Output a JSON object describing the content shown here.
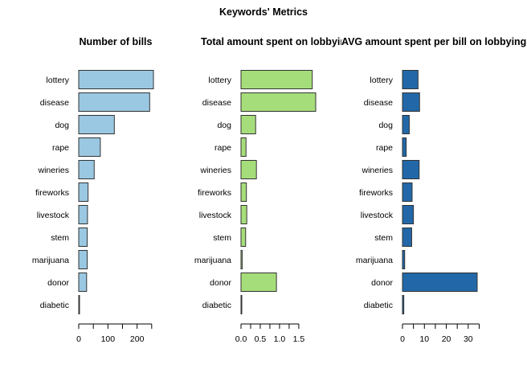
{
  "suptitle": "Keywords' Metrics",
  "chart_data": [
    {
      "type": "bar",
      "orientation": "horizontal",
      "title": "Number of bills",
      "categories": [
        "lottery",
        "disease",
        "dog",
        "rape",
        "wineries",
        "fireworks",
        "livestock",
        "stem",
        "marijuana",
        "donor",
        "diabetic"
      ],
      "values": [
        256,
        243,
        122,
        74,
        53,
        32,
        30,
        29,
        29,
        27,
        2
      ],
      "xlim": [
        0,
        256
      ],
      "xticks": [
        0,
        50,
        100,
        150,
        200,
        250
      ],
      "xtick_labels": [
        "0",
        "",
        "100",
        "",
        "200",
        ""
      ],
      "color": "#9ac8e2"
    },
    {
      "type": "bar",
      "orientation": "horizontal",
      "title": "Total amount spent on lobbying",
      "categories": [
        "lottery",
        "disease",
        "dog",
        "rape",
        "wineries",
        "fireworks",
        "livestock",
        "stem",
        "marijuana",
        "donor",
        "diabetic"
      ],
      "values": [
        1.85,
        1.94,
        0.38,
        0.13,
        0.4,
        0.14,
        0.15,
        0.12,
        0.03,
        0.92,
        0.01
      ],
      "xlim": [
        0,
        1.94
      ],
      "xticks": [
        0,
        0.25,
        0.5,
        0.75,
        1.0,
        1.25,
        1.5
      ],
      "xtick_labels": [
        "0.0",
        "",
        "0.5",
        "",
        "1.0",
        "",
        "1.5"
      ],
      "color": "#a6dd7b"
    },
    {
      "type": "bar",
      "orientation": "horizontal",
      "title": "AVG amount spent per bill on lobbying",
      "categories": [
        "lottery",
        "disease",
        "dog",
        "rape",
        "wineries",
        "fireworks",
        "livestock",
        "stem",
        "marijuana",
        "donor",
        "diabetic"
      ],
      "values": [
        7.1,
        7.8,
        3.1,
        1.7,
        7.6,
        4.4,
        5.0,
        4.2,
        1.0,
        34.1,
        0.6
      ],
      "xlim": [
        0,
        34.1
      ],
      "xticks": [
        0,
        5,
        10,
        15,
        20,
        25,
        30,
        35
      ],
      "xtick_labels": [
        "0",
        "",
        "10",
        "",
        "20",
        "",
        "30",
        ""
      ],
      "color": "#2268a8"
    }
  ]
}
